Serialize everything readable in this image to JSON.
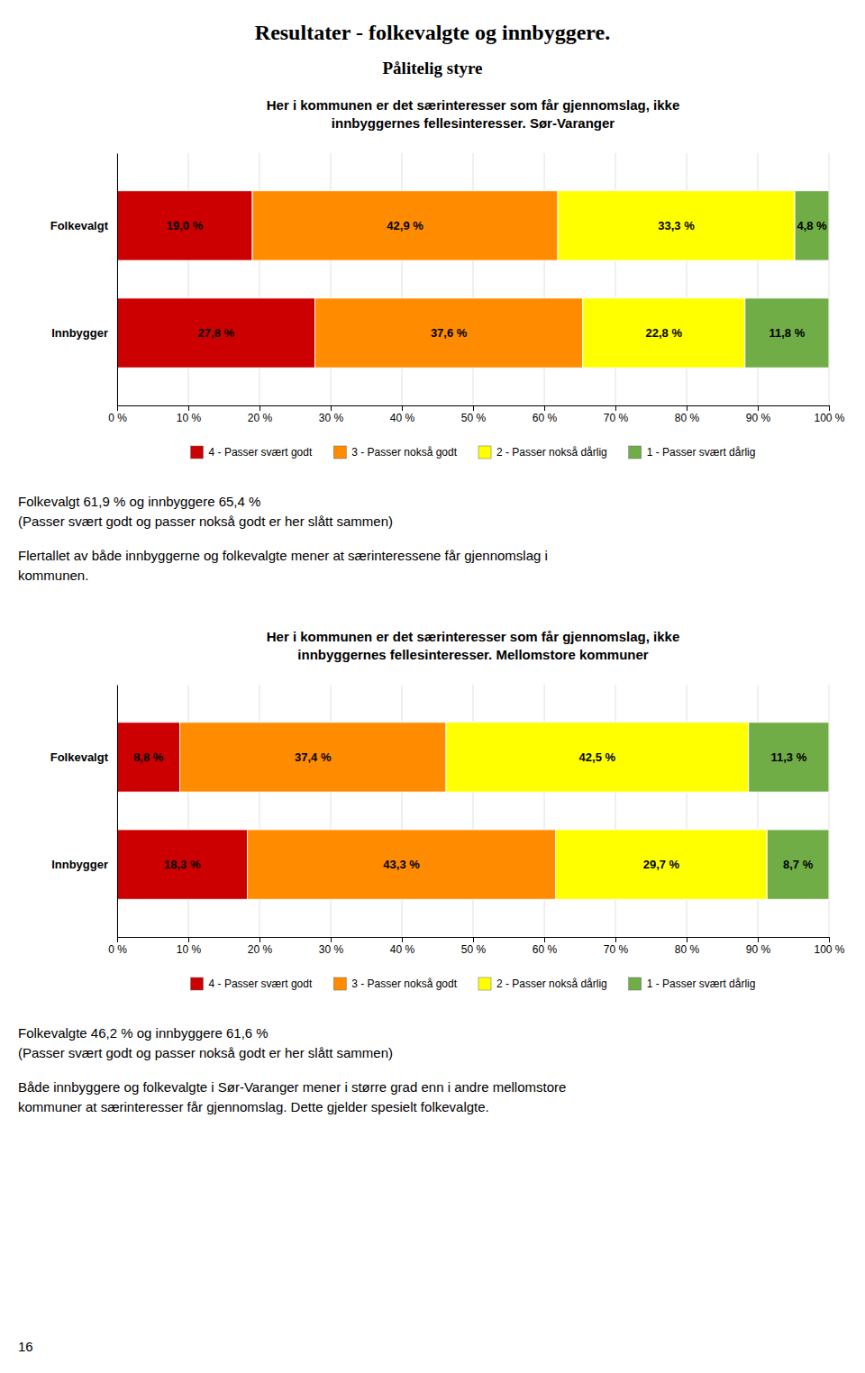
{
  "title": "Resultater - folkevalgte og innbyggere.",
  "subtitle": "Pålitelig styre",
  "page_number": "16",
  "chart_data": [
    {
      "type": "bar",
      "orientation": "horizontal",
      "stacked": true,
      "data_labels": true,
      "grid": true,
      "legend": "bottom",
      "title": [
        "Her i kommunen er det særinteresser som får gjennomslag, ikke",
        "innbyggernes fellesinteresser. Sør-Varanger"
      ],
      "categories": [
        "Folkevalgt",
        "Innbygger"
      ],
      "series": [
        {
          "name": "4 - Passer svært godt",
          "color": "#CC0000",
          "values": [
            19.0,
            27.8
          ],
          "value_labels": [
            "19,0 %",
            "27,8 %"
          ]
        },
        {
          "name": "3 - Passer nokså godt",
          "color": "#FF8C00",
          "values": [
            42.9,
            37.6
          ],
          "value_labels": [
            "42,9 %",
            "37,6 %"
          ]
        },
        {
          "name": "2 - Passer nokså dårlig",
          "color": "#FFFF00",
          "values": [
            33.3,
            22.8
          ],
          "value_labels": [
            "33,3 %",
            "22,8 %"
          ]
        },
        {
          "name": "1 - Passer svært dårlig",
          "color": "#70AD47",
          "values": [
            4.8,
            11.8
          ],
          "value_labels": [
            "4,8 %",
            "11,8 %"
          ]
        }
      ],
      "xlim": [
        0,
        100
      ],
      "xticks": [
        {
          "value": 0,
          "label": "0 %"
        },
        {
          "value": 10,
          "label": "10 %"
        },
        {
          "value": 20,
          "label": "20 %"
        },
        {
          "value": 30,
          "label": "30 %"
        },
        {
          "value": 40,
          "label": "40 %"
        },
        {
          "value": 50,
          "label": "50 %"
        },
        {
          "value": 60,
          "label": "60 %"
        },
        {
          "value": 70,
          "label": "70 %"
        },
        {
          "value": 80,
          "label": "80 %"
        },
        {
          "value": 90,
          "label": "90 %"
        },
        {
          "value": 100,
          "label": "100 %"
        }
      ],
      "notes": [
        [
          "Folkevalgt 61,9 % og innbyggere 65,4 %",
          "(Passer svært godt og passer nokså godt er her slått sammen)"
        ],
        [
          "Flertallet av både innbyggerne og folkevalgte mener at særinteressene får gjennomslag i",
          "kommunen."
        ]
      ]
    },
    {
      "type": "bar",
      "orientation": "horizontal",
      "stacked": true,
      "data_labels": true,
      "grid": true,
      "legend": "bottom",
      "title": [
        "Her i kommunen er det særinteresser som får gjennomslag, ikke",
        "innbyggernes fellesinteresser. Mellomstore kommuner"
      ],
      "categories": [
        "Folkevalgt",
        "Innbygger"
      ],
      "series": [
        {
          "name": "4 - Passer svært godt",
          "color": "#CC0000",
          "values": [
            8.8,
            18.3
          ],
          "value_labels": [
            "8,8 %",
            "18,3 %"
          ]
        },
        {
          "name": "3 - Passer nokså godt",
          "color": "#FF8C00",
          "values": [
            37.4,
            43.3
          ],
          "value_labels": [
            "37,4 %",
            "43,3 %"
          ]
        },
        {
          "name": "2 - Passer nokså dårlig",
          "color": "#FFFF00",
          "values": [
            42.5,
            29.7
          ],
          "value_labels": [
            "42,5 %",
            "29,7 %"
          ]
        },
        {
          "name": "1 - Passer svært dårlig",
          "color": "#70AD47",
          "values": [
            11.3,
            8.7
          ],
          "value_labels": [
            "11,3 %",
            "8,7 %"
          ]
        }
      ],
      "xlim": [
        0,
        100
      ],
      "xticks": [
        {
          "value": 0,
          "label": "0 %"
        },
        {
          "value": 10,
          "label": "10 %"
        },
        {
          "value": 20,
          "label": "20 %"
        },
        {
          "value": 30,
          "label": "30 %"
        },
        {
          "value": 40,
          "label": "40 %"
        },
        {
          "value": 50,
          "label": "50 %"
        },
        {
          "value": 60,
          "label": "60 %"
        },
        {
          "value": 70,
          "label": "70 %"
        },
        {
          "value": 80,
          "label": "80 %"
        },
        {
          "value": 90,
          "label": "90 %"
        },
        {
          "value": 100,
          "label": "100 %"
        }
      ],
      "notes": [
        [
          "Folkevalgte 46,2 % og innbyggere 61,6 %",
          "(Passer svært godt og passer nokså godt er her slått sammen)"
        ],
        [
          "Både innbyggere og folkevalgte i Sør-Varanger mener i større grad enn i andre mellomstore",
          "kommuner at særinteresser får gjennomslag. Dette gjelder spesielt folkevalgte."
        ]
      ]
    }
  ]
}
